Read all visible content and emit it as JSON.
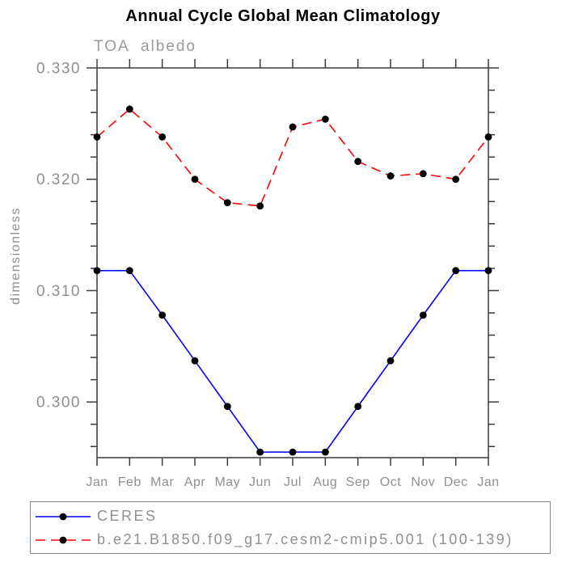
{
  "chart_data": {
    "type": "line",
    "title": "Annual Cycle Global Mean Climatology",
    "subtitle": "TOA albedo",
    "ylabel": "dimensionless",
    "xlabel": "",
    "x_tick_labels": [
      "Jan",
      "Feb",
      "Mar",
      "Apr",
      "May",
      "Jun",
      "Jul",
      "Aug",
      "Sep",
      "Oct",
      "Nov",
      "Dec",
      "Jan"
    ],
    "ylim": [
      0.295,
      0.33
    ],
    "y_major_ticks": [
      0.3,
      0.31,
      0.32,
      0.33
    ],
    "y_major_tick_labels": [
      "0.300",
      "0.310",
      "0.320",
      "0.330"
    ],
    "y_minor_tick_step": 0.002,
    "grid": false,
    "legend_position": "bottom-left",
    "axis_color": "#3a3a3a",
    "label_color": "#8f8f8f",
    "series": [
      {
        "name": "CERES",
        "color": "#0000ff",
        "line_style": "solid",
        "marker": "circle",
        "marker_color": "#000000",
        "values": [
          0.3118,
          0.3118,
          0.3078,
          0.3037,
          0.2996,
          0.2955,
          0.2955,
          0.2955,
          0.2996,
          0.3037,
          0.3078,
          0.3118,
          0.3118
        ]
      },
      {
        "name": "b.e21.B1850.f09_g17.cesm2-cmip5.001 (100-139)",
        "color": "#ff0000",
        "line_style": "dashed",
        "marker": "circle",
        "marker_color": "#000000",
        "values": [
          0.3238,
          0.3263,
          0.3238,
          0.32,
          0.3179,
          0.3176,
          0.3247,
          0.3254,
          0.3216,
          0.3203,
          0.3205,
          0.32,
          0.3238
        ]
      }
    ]
  }
}
